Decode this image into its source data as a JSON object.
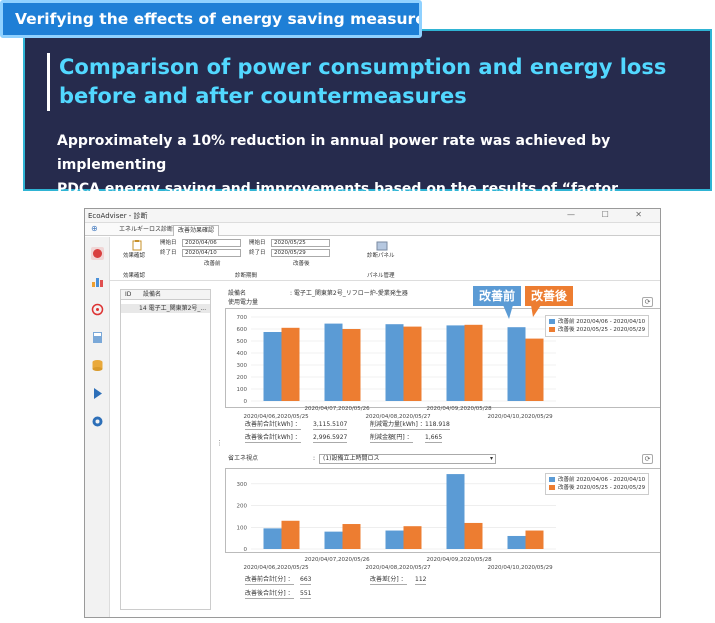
{
  "header_tag": "Verifying the effects of energy saving measures",
  "banner": {
    "title_line1": "Comparison of power consumption and energy loss",
    "title_line2": "before and after countermeasures",
    "body_line1": "Approximately a 10% reduction in annual power rate was achieved by implementing",
    "body_line2": "PDCA energy saving and improvements based on the results of “factor diagnosis”."
  },
  "colors": {
    "before": "#5b9bd5",
    "after": "#ed7d31",
    "banner_bg": "#262b4d",
    "title": "#52d8ff"
  },
  "window": {
    "title": "EcoAdviser - 診断",
    "controls": "— ☐ ✕",
    "tabs": [
      "エネルギーロス診断",
      "改善効果確認"
    ],
    "active_tab": 1
  },
  "ribbon": {
    "effect_check_label": "効果確認",
    "start_label1": "開始日",
    "end_label1": "終了日",
    "start_date1": "2020/04/06",
    "end_date1": "2020/04/10",
    "start_label2": "開始日",
    "end_label2": "終了日",
    "start_date2": "2020/05/25",
    "end_date2": "2020/05/29",
    "group_before": "改善前",
    "group_after": "改善後",
    "group_effect": "効果確認",
    "group_period": "診断期間",
    "panel_button": "診断パネル",
    "panel_group": "パネル管理"
  },
  "list": {
    "col_id": "ID",
    "col_name": "設備名",
    "row_id": "14",
    "row_name": "電子工_関東第2号_..."
  },
  "equipment": {
    "label": "設備名",
    "value": ":  電子工_関東第2号_リフロー炉-愛業発生器",
    "usage_label": "使用電力量"
  },
  "callouts": {
    "before": "改善前",
    "after": "改善後"
  },
  "chart1": {
    "axis_values": [
      "700",
      "600",
      "500",
      "400",
      "300",
      "200",
      "100",
      "0"
    ]
  },
  "chart2": {
    "axis_values": [
      "300",
      "200",
      "100",
      "0"
    ]
  },
  "chart_data": [
    {
      "type": "bar",
      "ylabel": "",
      "ylim": [
        0,
        700
      ],
      "categories": [
        "2020/04/06,2020/05/25",
        "2020/04/07,2020/05/26",
        "2020/04/08,2020/05/27",
        "2020/04/09,2020/05/28",
        "2020/04/10,2020/05/29"
      ],
      "series": [
        {
          "name": "改善前 2020/04/06 - 2020/04/10",
          "values": [
            575,
            645,
            640,
            630,
            615
          ]
        },
        {
          "name": "改善後 2020/05/25 - 2020/05/29",
          "values": [
            610,
            600,
            620,
            635,
            520
          ]
        }
      ],
      "legend": "top-right"
    },
    {
      "type": "bar",
      "ylim": [
        0,
        350
      ],
      "categories": [
        "2020/04/06,2020/05/25",
        "2020/04/07,2020/05/26",
        "2020/04/08,2020/05/27",
        "2020/04/09,2020/05/28",
        "2020/04/10,2020/05/29"
      ],
      "series": [
        {
          "name": "改善前 2020/04/06 - 2020/04/10",
          "values": [
            95,
            80,
            85,
            345,
            60
          ]
        },
        {
          "name": "改善後 2020/05/25 - 2020/05/29",
          "values": [
            130,
            115,
            105,
            120,
            85
          ]
        }
      ],
      "legend": "top-right"
    }
  ],
  "summary1": {
    "before_label": "改善前合計[kWh] ：",
    "before_value": "3,115.5107",
    "after_label": "改善後合計[kWh] ：",
    "after_value": "2,996.5927",
    "reduce_label": "削減電力量[kWh] ：",
    "reduce_value": "118.918",
    "amount_label": "削減金額[円] ：",
    "amount_value": "1,665"
  },
  "energy_view": {
    "label": "省エネ視点",
    "colon": ":",
    "value": "(1)設備立上時間ロス"
  },
  "summary2": {
    "before_label": "改善前合計[分] ：",
    "before_value": "663",
    "after_label": "改善後合計[分] ：",
    "after_value": "551",
    "diff_label": "改善差[分] ：",
    "diff_value": "112"
  }
}
